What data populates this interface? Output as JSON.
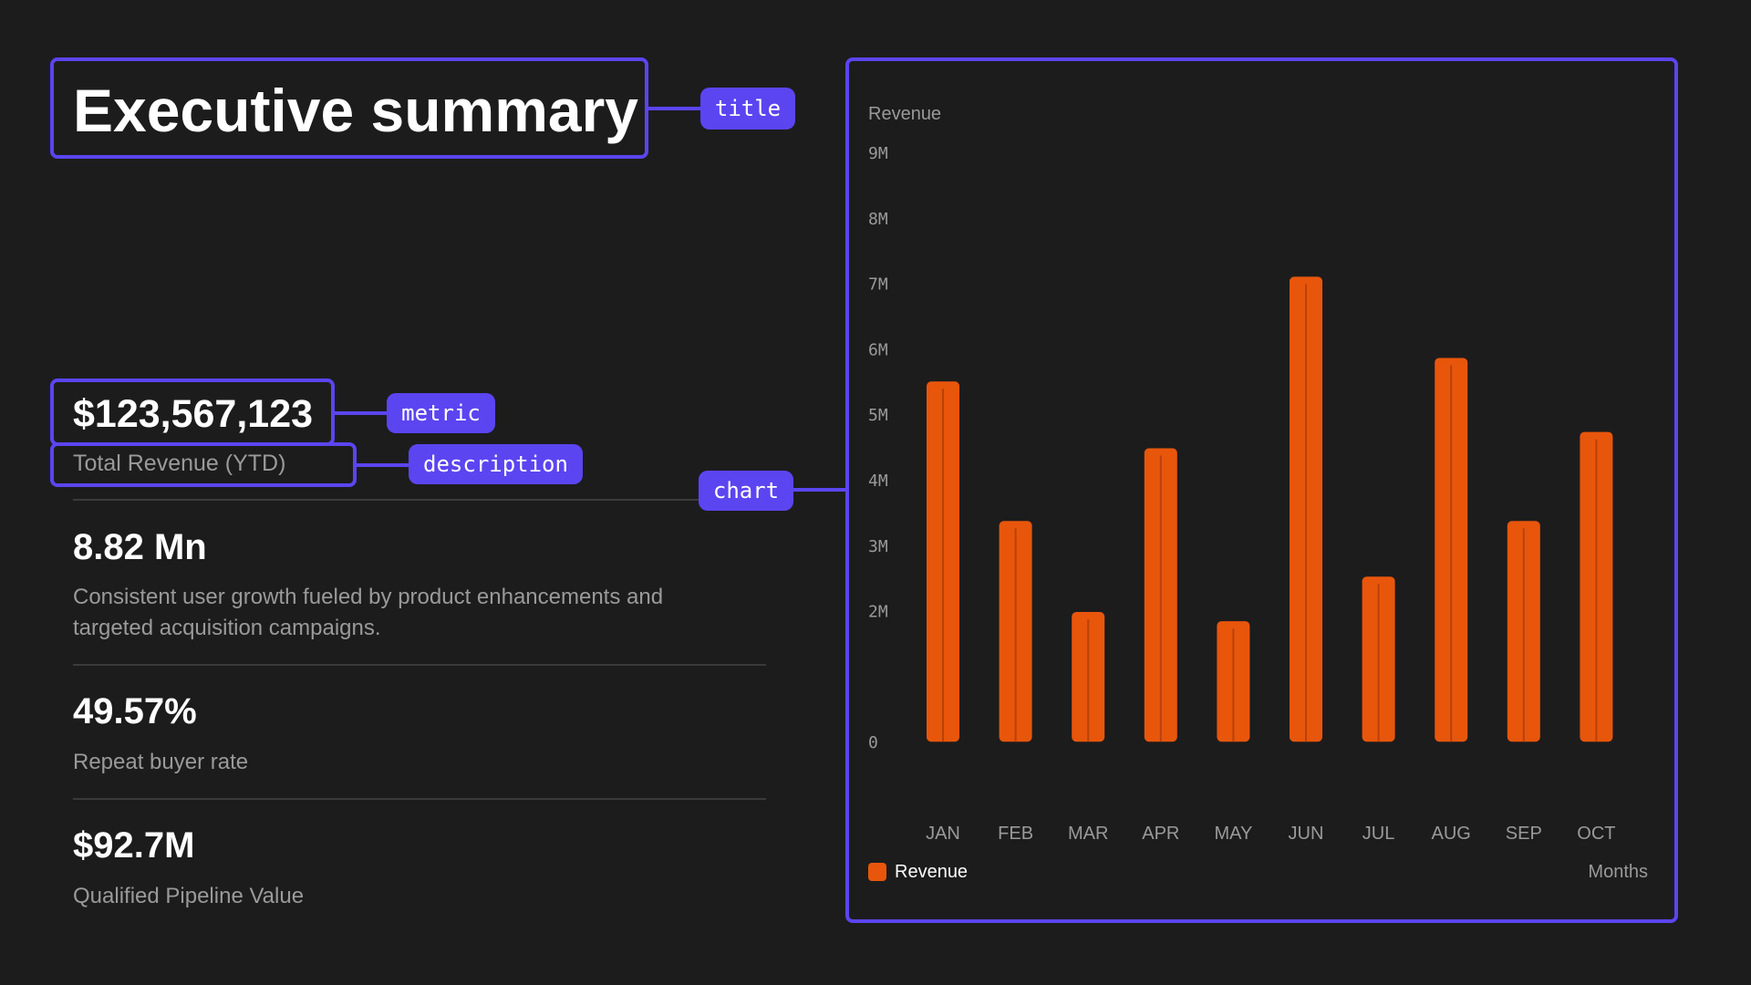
{
  "header": {
    "title": "Executive summary"
  },
  "kpi": {
    "metric": "$123,567,123",
    "description": "Total Revenue (YTD)"
  },
  "stats": [
    {
      "value": "8.82 Mn",
      "text": "Consistent user growth fueled by product enhancements and targeted acquisition campaigns."
    },
    {
      "value": "49.57%",
      "text": "Repeat buyer rate"
    },
    {
      "value": "$92.7M",
      "text": "Qualified Pipeline Value"
    }
  ],
  "annotations": {
    "title_tag": "title",
    "metric_tag": "metric",
    "description_tag": "description",
    "chart_tag": "chart"
  },
  "colors": {
    "accent": "#5b45f0",
    "bar": "#e8560c",
    "background": "#1c1c1d"
  },
  "chart_data": {
    "type": "bar",
    "ylabel": "Revenue",
    "xlabel": "Months",
    "categories": [
      "JAN",
      "FEB",
      "MAR",
      "APR",
      "MAY",
      "JUN",
      "JUL",
      "AUG",
      "SEP",
      "OCT"
    ],
    "series": [
      {
        "name": "Revenue",
        "values": [
          5500000,
          3370000,
          1980000,
          4480000,
          1840000,
          7100000,
          2520000,
          5860000,
          3370000,
          4730000
        ]
      }
    ],
    "ylim": [
      -1000000,
      9000000
    ],
    "yticks": [
      0,
      2000000,
      3000000,
      4000000,
      5000000,
      6000000,
      7000000,
      8000000,
      9000000
    ],
    "ytick_labels": [
      "0",
      "2M",
      "3M",
      "4M",
      "5M",
      "6M",
      "7M",
      "8M",
      "9M"
    ],
    "grid": false,
    "legend": "bottom-left"
  }
}
